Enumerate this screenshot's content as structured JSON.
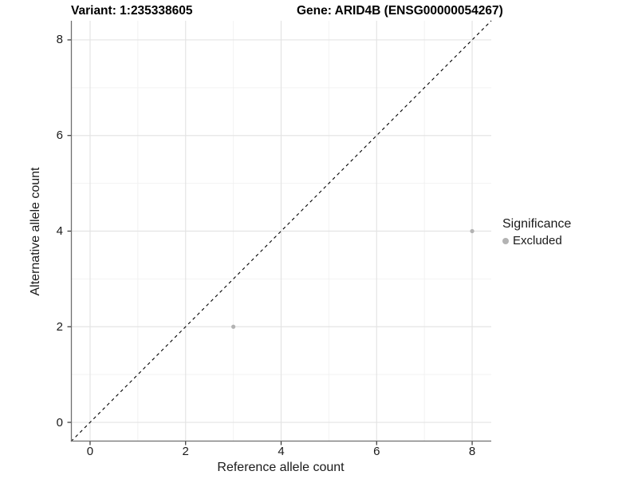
{
  "titles": {
    "variant": "Variant: 1:235338605",
    "gene": "Gene: ARID4B (ENSG00000054267)"
  },
  "legend": {
    "title": "Significance",
    "items": [
      {
        "label": "Excluded",
        "color": "#b3b3b3"
      }
    ]
  },
  "colors": {
    "point": "#b3b3b3",
    "grid_major": "#e4e4e4",
    "grid_minor": "#f2f2f2",
    "axis_line": "#6f6f6f",
    "tick_mark": "#333333",
    "text": "#1a1a1a",
    "identity_line": "#000000",
    "panel_background": "#ffffff"
  },
  "chart_data": {
    "type": "scatter",
    "title": "Variant: 1:235338605   Gene: ARID4B (ENSG00000054267)",
    "xlabel": "Reference allele count",
    "ylabel": "Alternative allele count",
    "xlim": [
      -0.4,
      8.4
    ],
    "ylim": [
      -0.4,
      8.4
    ],
    "x_ticks": [
      0,
      2,
      4,
      6,
      8
    ],
    "y_ticks": [
      0,
      2,
      4,
      6,
      8
    ],
    "x_minor_ticks": [
      1,
      3,
      5,
      7
    ],
    "y_minor_ticks": [
      1,
      3,
      5,
      7
    ],
    "grid": true,
    "legend_position": "right",
    "series": [
      {
        "name": "Excluded",
        "color": "#b3b3b3",
        "points": [
          {
            "x": 3,
            "y": 2
          },
          {
            "x": 8,
            "y": 4
          }
        ]
      }
    ],
    "identity_line": {
      "style": "dashed",
      "color": "#000000",
      "from": [
        -0.4,
        -0.4
      ],
      "to": [
        8.4,
        8.4
      ],
      "equation": "y = x"
    }
  }
}
